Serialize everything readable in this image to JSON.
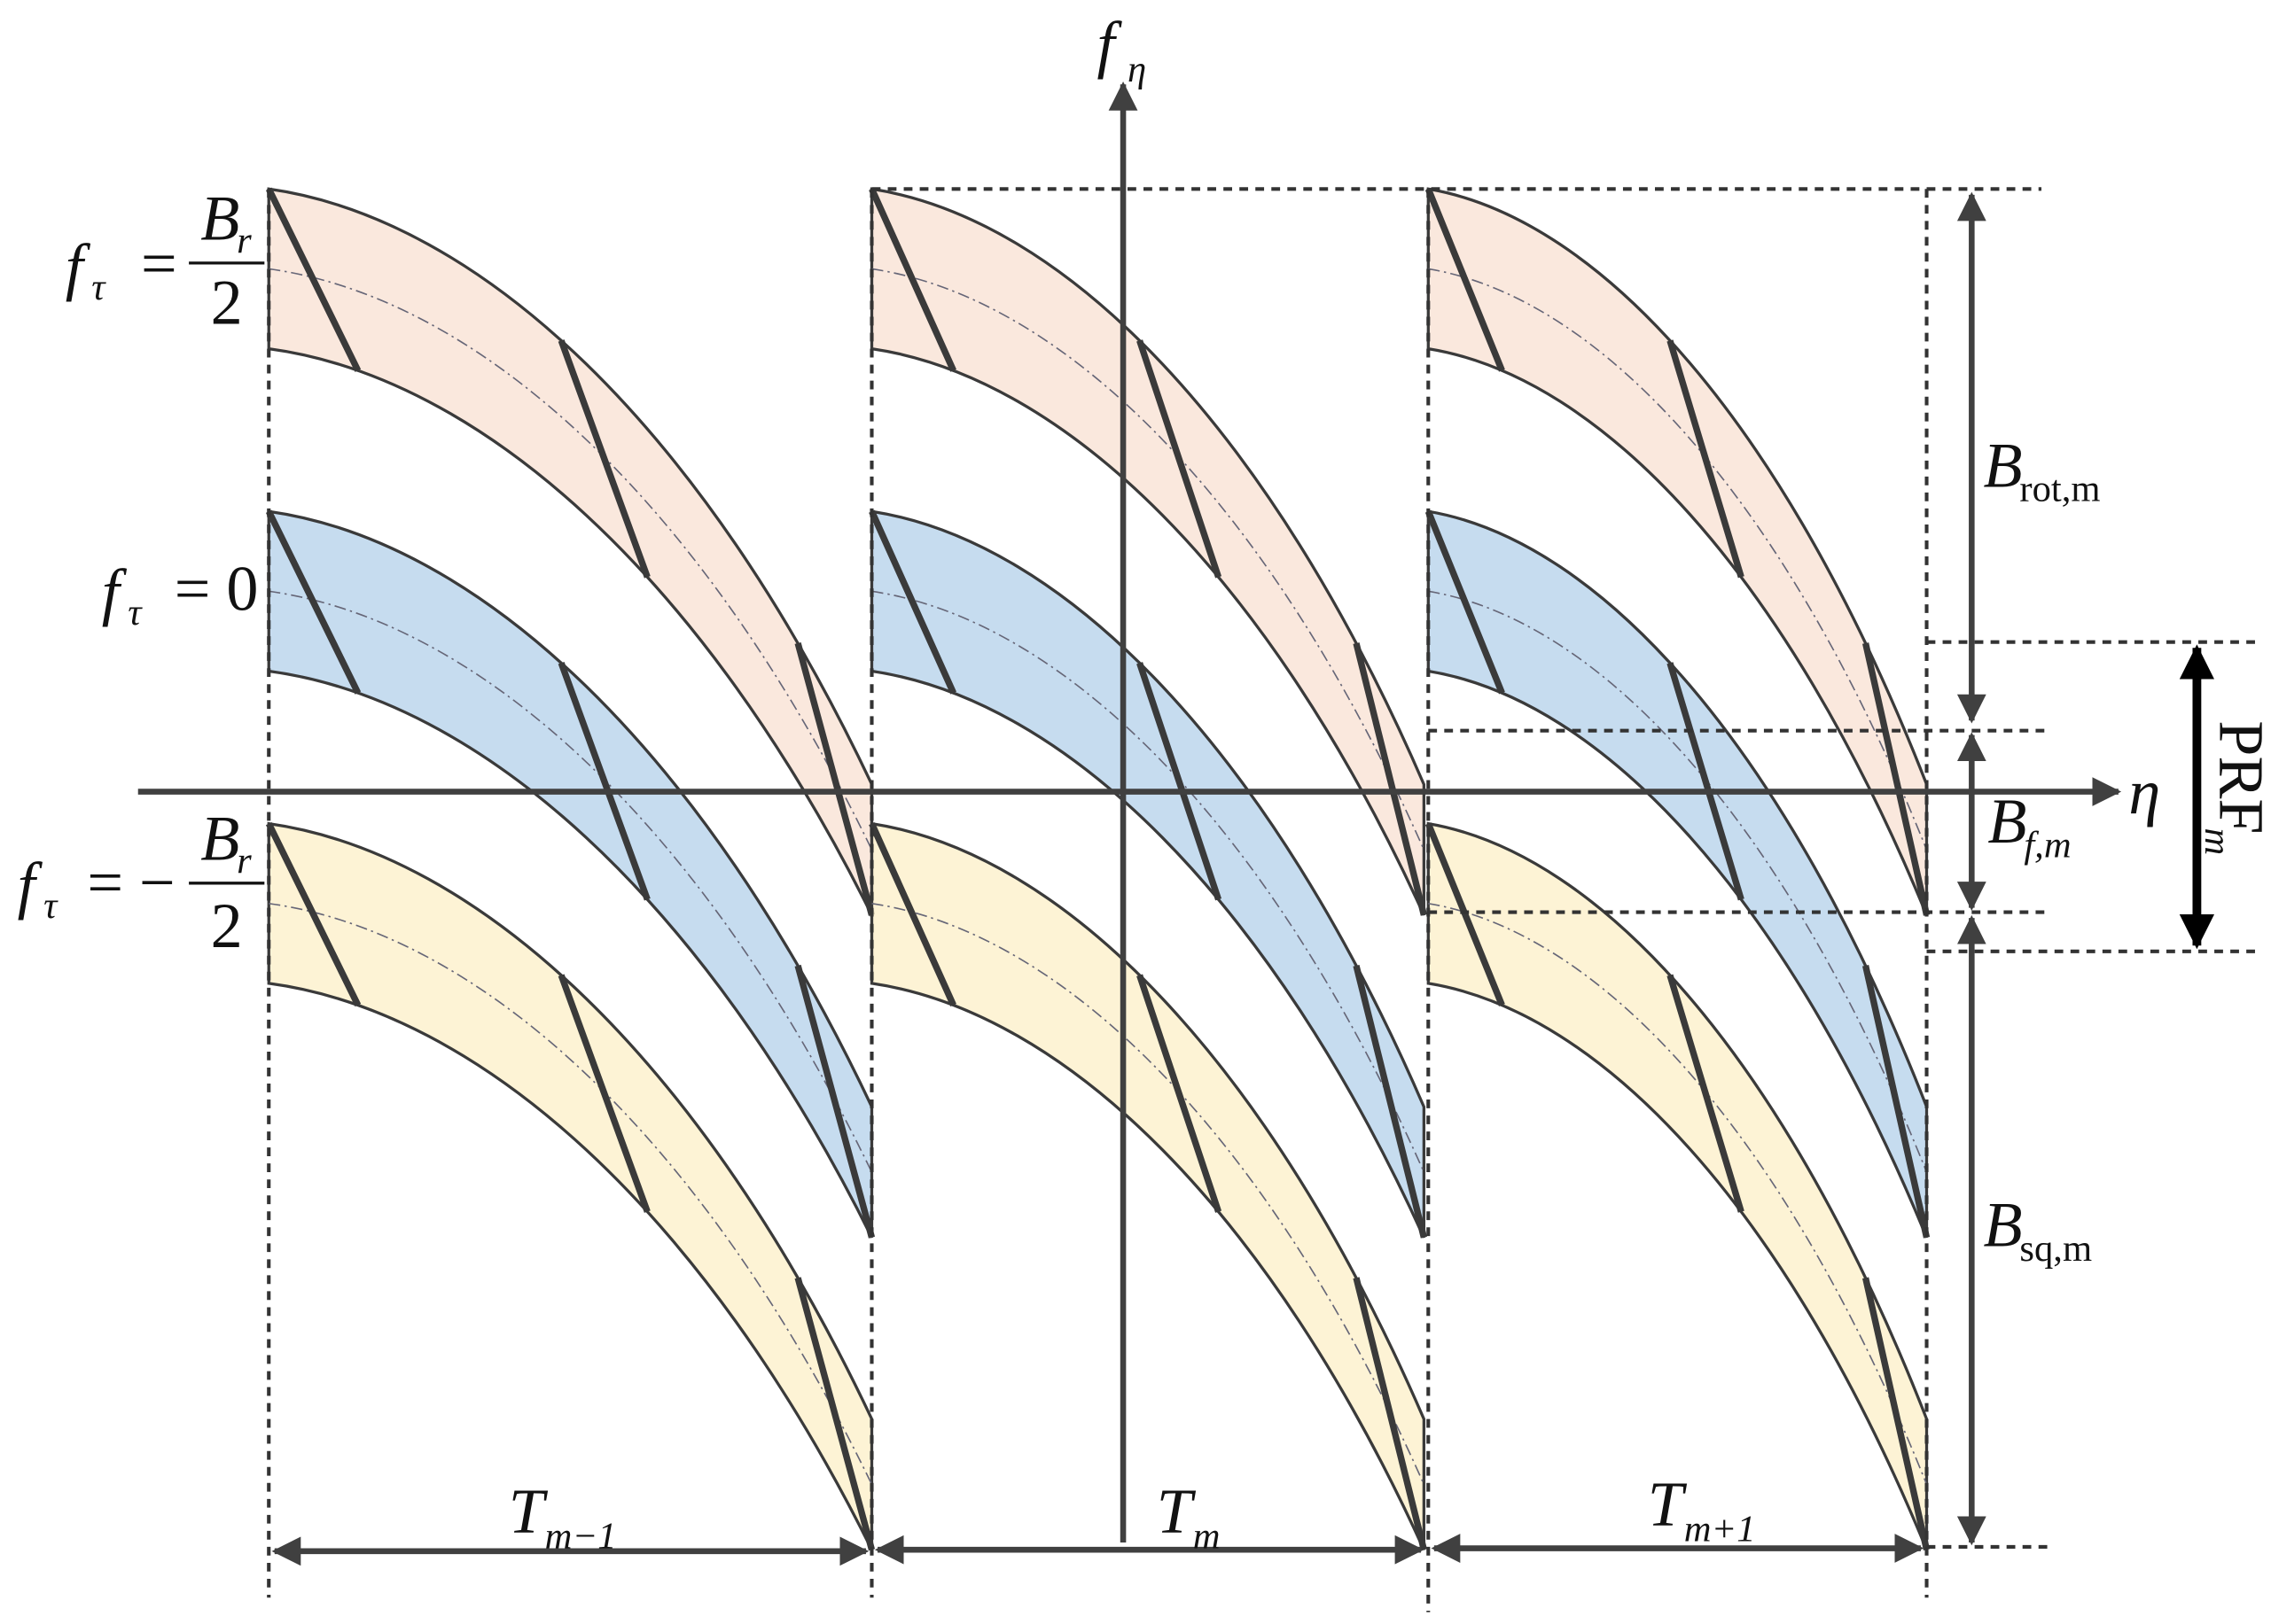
{
  "axes": {
    "vertical": {
      "symbol": "f",
      "subscript": "η"
    },
    "horizontal": "η"
  },
  "levels": [
    {
      "symbol": "f",
      "subscript": "τ",
      "relation": "=",
      "numerator": "B",
      "numerator_sub": "r",
      "denominator": "2"
    },
    {
      "symbol": "f",
      "subscript": "τ",
      "relation": "= 0"
    },
    {
      "symbol": "f",
      "subscript": "τ",
      "relation": "= −",
      "numerator": "B",
      "numerator_sub": "r",
      "denominator": "2"
    }
  ],
  "bandwidths": [
    {
      "symbol": "B",
      "subscript": "rot,m"
    },
    {
      "symbol": "B",
      "subscript": "f,m"
    },
    {
      "symbol": "B",
      "subscript": "sq,m"
    }
  ],
  "prf": {
    "text": "PRF",
    "subscript": "m"
  },
  "periods": [
    {
      "symbol": "T",
      "subscript": "m−1"
    },
    {
      "symbol": "T",
      "subscript": "m"
    },
    {
      "symbol": "T",
      "subscript": "m+1"
    }
  ]
}
